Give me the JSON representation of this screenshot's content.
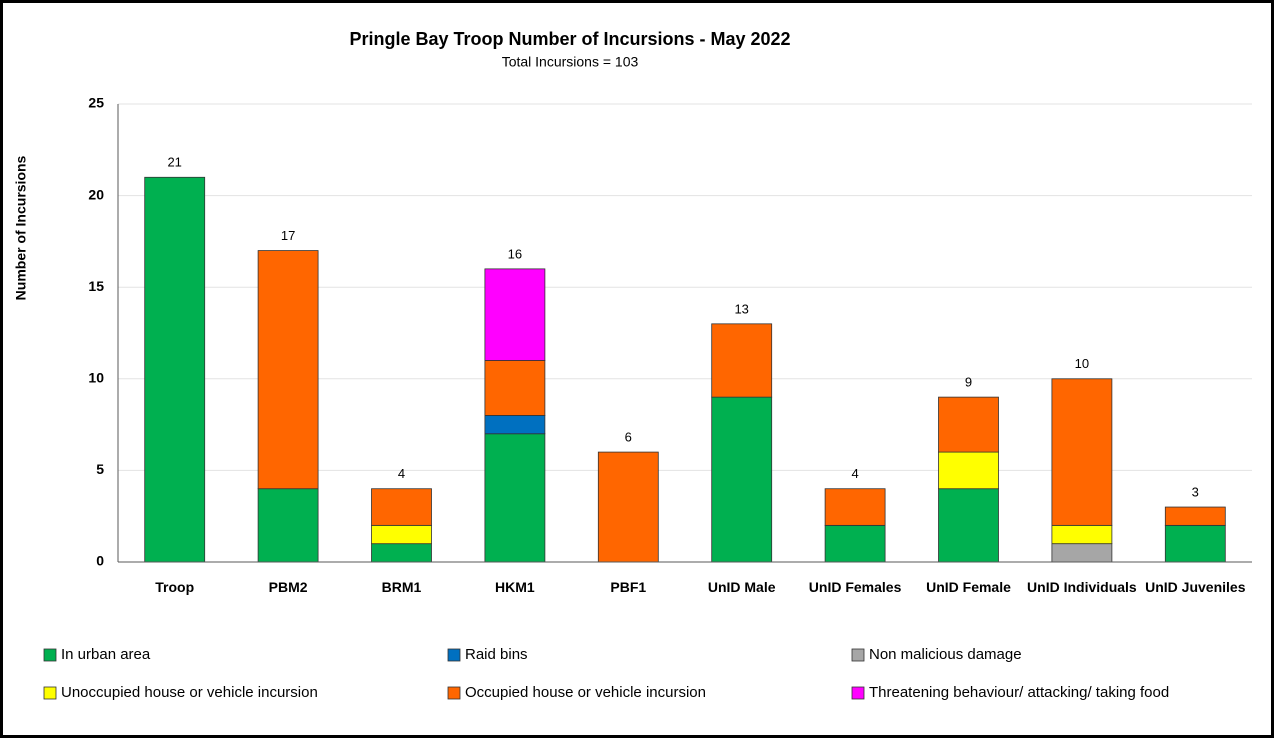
{
  "chart_data": {
    "type": "stacked_bar",
    "title": "Pringle Bay Troop Number of Incursions - May 2022",
    "subtitle": "Total Incursions = 103",
    "y_label": "Number of Incursions",
    "categories": [
      "Troop",
      "PBM2",
      "BRM1",
      "HKM1",
      "PBF1",
      "UnID Male",
      "UnID Females",
      "UnID Female",
      "UnID Individuals",
      "UnID Juveniles"
    ],
    "series": [
      {
        "name": "In urban area",
        "color": "#00b050",
        "values": [
          21,
          4,
          1,
          7,
          0,
          9,
          2,
          4,
          0,
          2
        ]
      },
      {
        "name": "Raid bins",
        "color": "#0070c0",
        "values": [
          0,
          0,
          0,
          1,
          0,
          0,
          0,
          0,
          0,
          0
        ]
      },
      {
        "name": "Non malicious damage",
        "color": "#a6a6a6",
        "values": [
          0,
          0,
          0,
          0,
          0,
          0,
          0,
          0,
          1,
          0
        ]
      },
      {
        "name": "Unoccupied house or vehicle incursion",
        "color": "#ffff00",
        "values": [
          0,
          0,
          1,
          0,
          0,
          0,
          0,
          2,
          1,
          0
        ]
      },
      {
        "name": "Occupied house or vehicle incursion",
        "color": "#ff6600",
        "values": [
          0,
          13,
          2,
          3,
          6,
          4,
          2,
          3,
          8,
          1
        ]
      },
      {
        "name": "Threatening behaviour/ attacking/ taking food",
        "color": "#ff00ff",
        "values": [
          0,
          0,
          0,
          5,
          0,
          0,
          0,
          0,
          0,
          0
        ]
      }
    ],
    "total_labels": [
      21,
      17,
      4,
      16,
      6,
      13,
      4,
      9,
      10,
      3
    ],
    "ylim": [
      0,
      25
    ],
    "yticks": [
      0,
      5,
      10,
      15,
      20,
      25
    ],
    "grid": true
  }
}
